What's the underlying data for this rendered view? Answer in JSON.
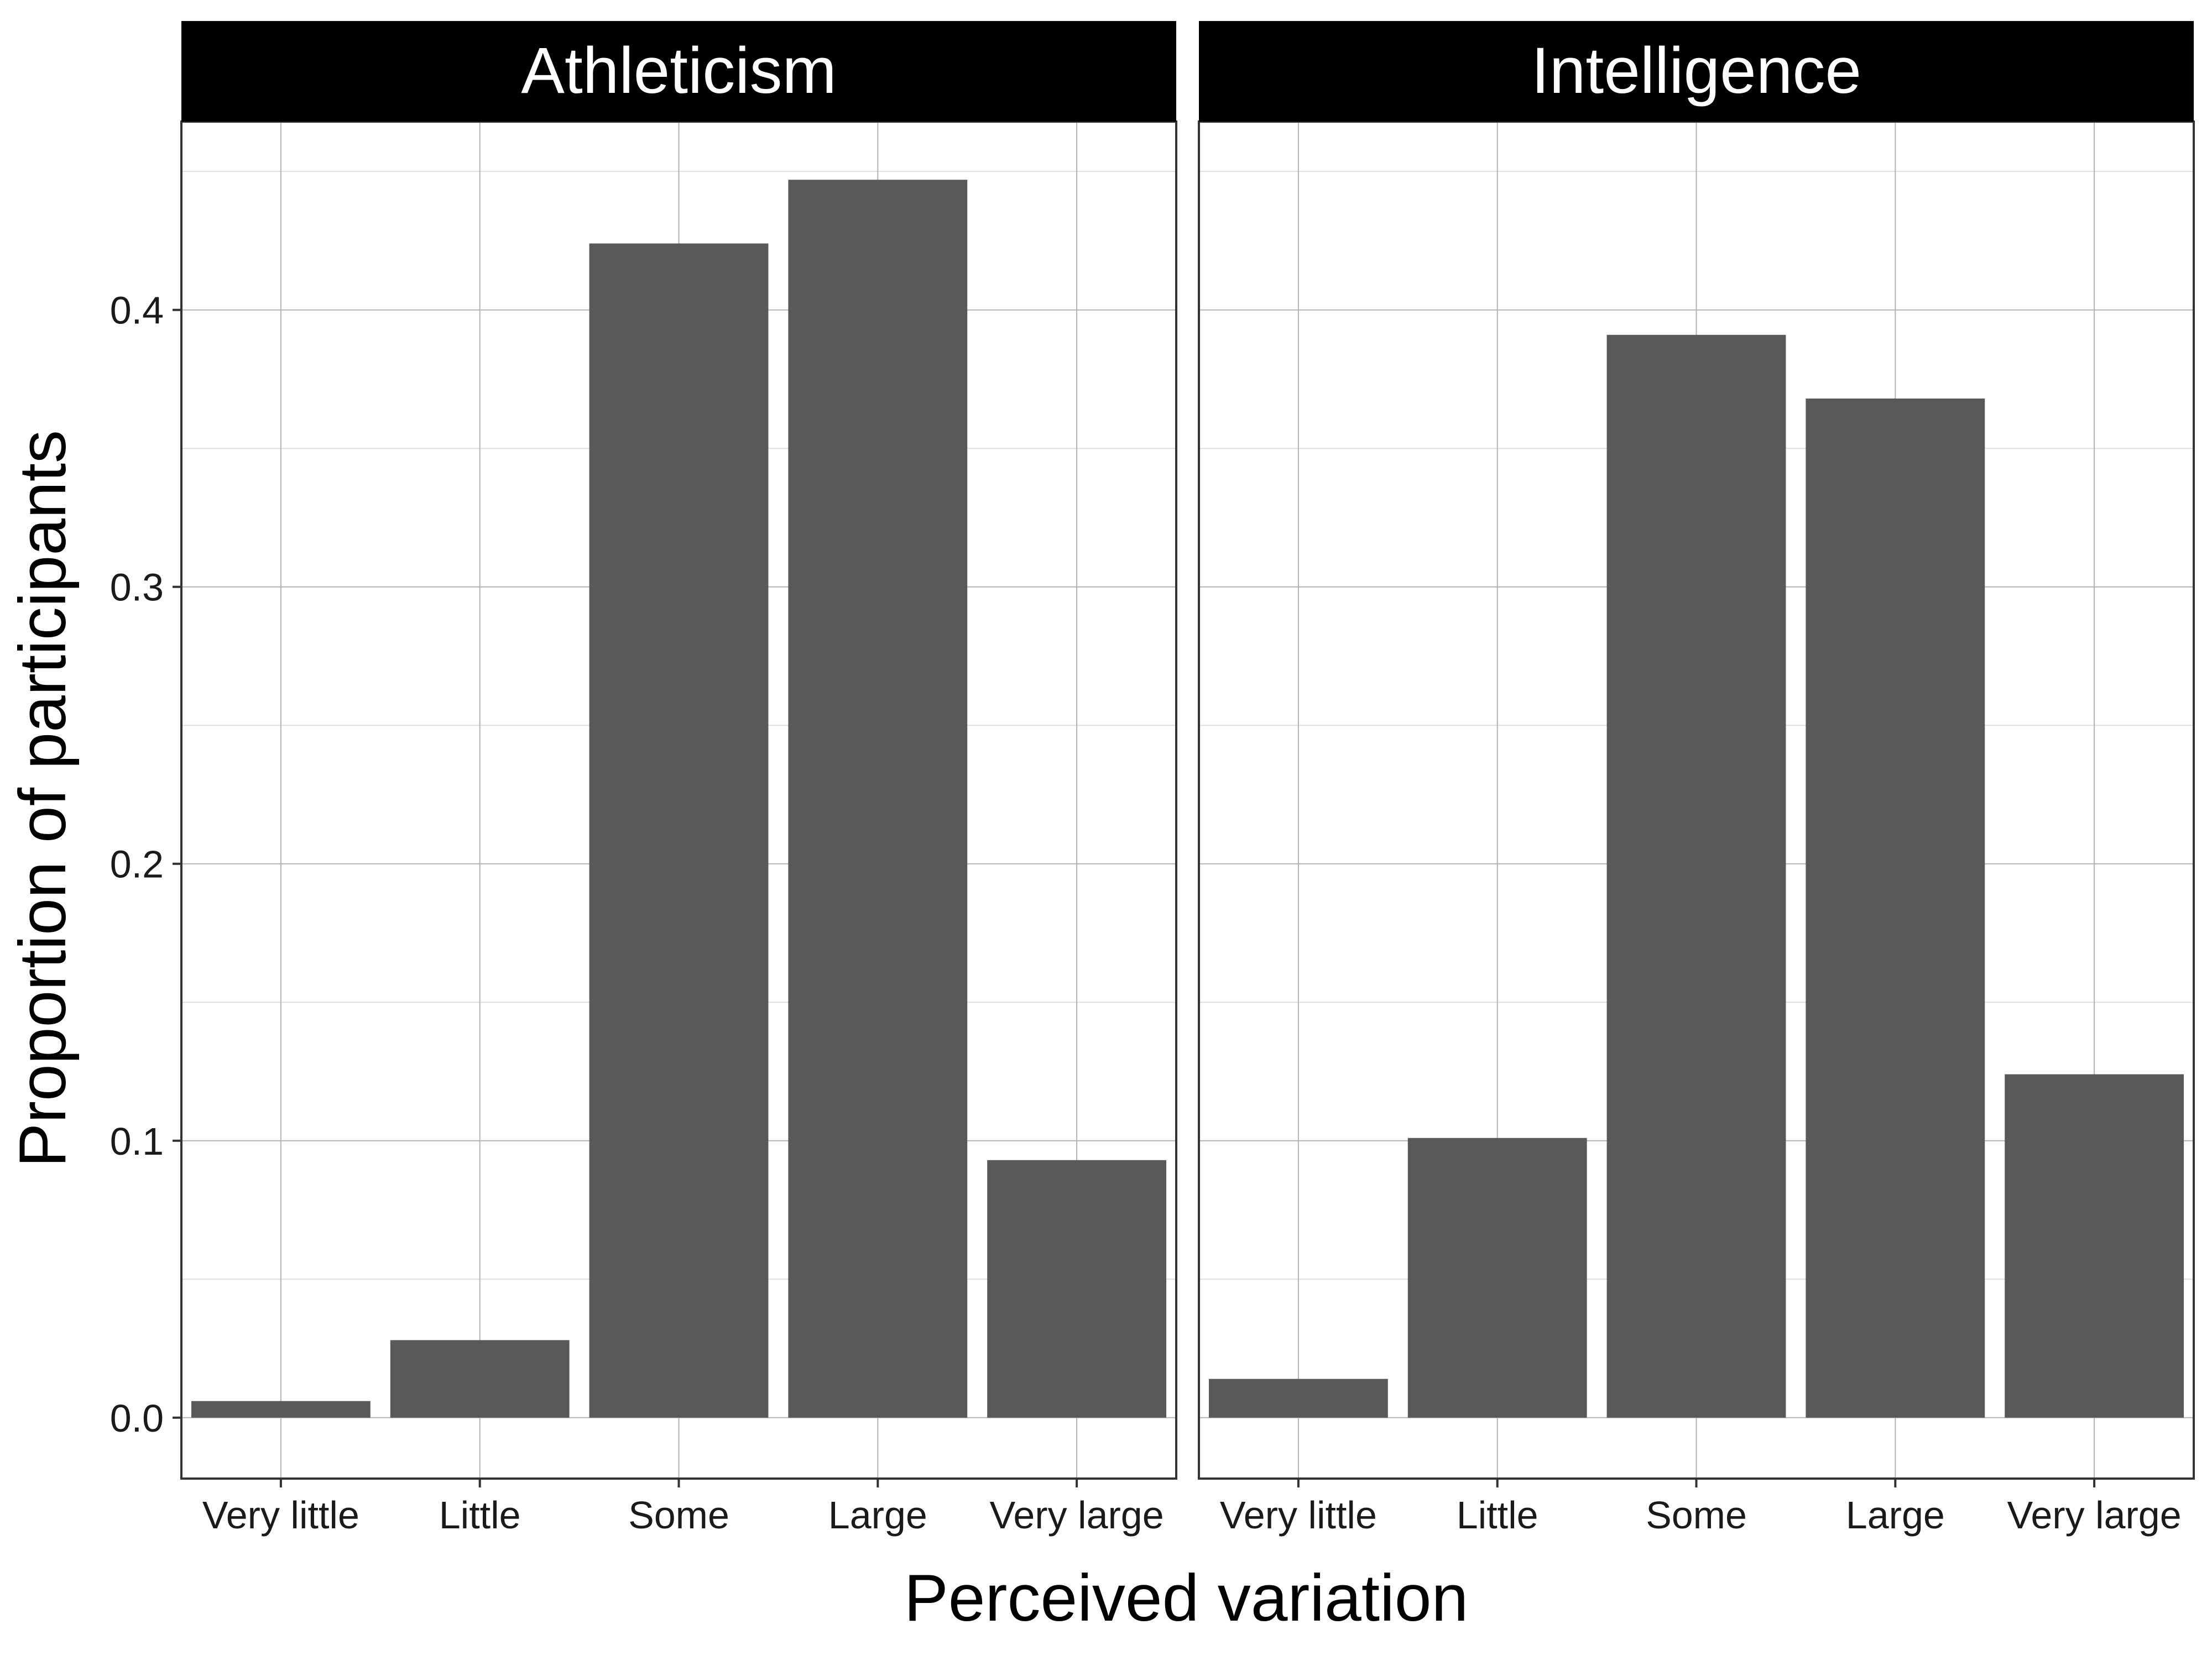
{
  "chart_data": {
    "type": "bar",
    "xlabel": "Perceived variation",
    "ylabel": "Proportion of participants",
    "ylim": [
      -0.022,
      0.468
    ],
    "yticks": [
      0.0,
      0.1,
      0.2,
      0.3,
      0.4
    ],
    "ytick_labels": [
      "0.0",
      "0.1",
      "0.2",
      "0.3",
      "0.4"
    ],
    "categories": [
      "Very little",
      "Little",
      "Some",
      "Large",
      "Very large"
    ],
    "grid": true,
    "bar_color": "#595959",
    "facet_strip_color": "#000000",
    "facet_label_color": "#ffffff",
    "grid_major_color": "#b3b3b3",
    "grid_minor_color": "#e0e0e0",
    "facets": [
      {
        "title": "Athleticism",
        "values": [
          0.006,
          0.028,
          0.424,
          0.447,
          0.093
        ]
      },
      {
        "title": "Intelligence",
        "values": [
          0.014,
          0.101,
          0.391,
          0.368,
          0.124
        ]
      }
    ]
  }
}
